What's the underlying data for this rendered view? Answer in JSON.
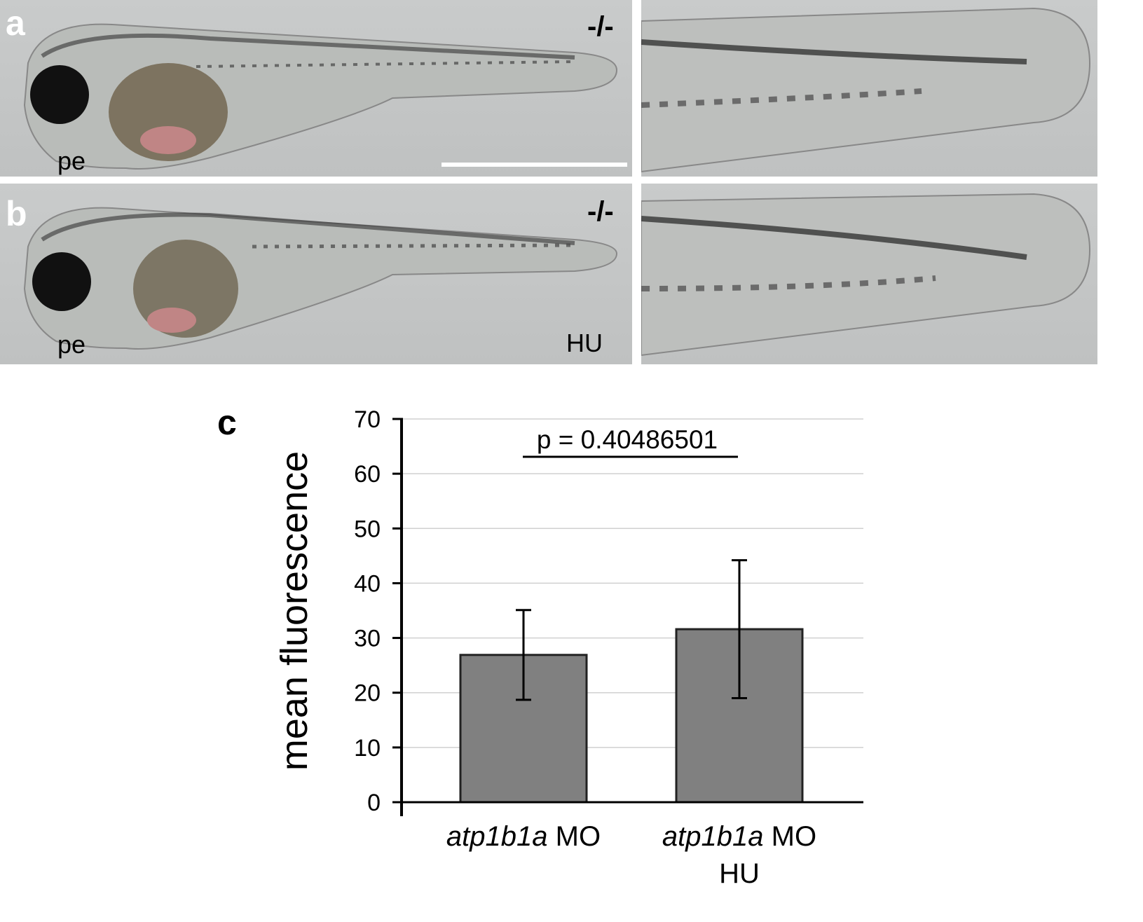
{
  "panels": {
    "a": {
      "label": "a",
      "annotation": "pe",
      "genotype": "-/-"
    },
    "b": {
      "label": "b",
      "annotation": "pe",
      "genotype": "-/-",
      "treatment": "HU"
    },
    "c": {
      "label": "c"
    }
  },
  "colors": {
    "bar_fill": "#808080",
    "bar_stroke": "#222222",
    "grid": "#d0d0d0",
    "micrograph_bg": "#c4c6c6"
  },
  "chart_data": {
    "type": "bar",
    "categories": [
      {
        "italic": "atp1b1a",
        "rest": " MO",
        "line2": ""
      },
      {
        "italic": "atp1b1a",
        "rest": " MO",
        "line2": "HU"
      }
    ],
    "values": [
      26.9,
      31.6
    ],
    "error_upper": [
      35.1,
      44.2
    ],
    "error_lower": [
      18.7,
      19.0
    ],
    "ylabel": "mean fluorescence",
    "xlabel": "",
    "ylim": [
      0,
      70
    ],
    "yticks": [
      "0",
      "10",
      "20",
      "30",
      "40",
      "50",
      "60",
      "70"
    ],
    "grid": true,
    "annotation": "p = 0.40486501"
  }
}
